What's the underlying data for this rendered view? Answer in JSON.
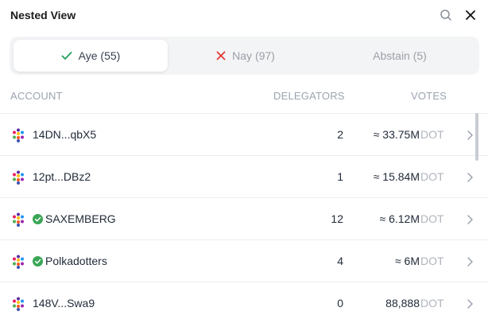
{
  "panel": {
    "title": "Nested View"
  },
  "tabs": [
    {
      "label": "Aye (55)",
      "icon": "check-icon",
      "color": "#22a05b",
      "active": true
    },
    {
      "label": "Nay (97)",
      "icon": "x-icon",
      "color": "#e53935",
      "active": false
    },
    {
      "label": "Abstain (5)",
      "icon": "",
      "active": false
    }
  ],
  "columns": {
    "account": "ACCOUNT",
    "delegators": "DELEGATORS",
    "votes": "VOTES"
  },
  "rows": [
    {
      "account": "14DN...qbX5",
      "verified": false,
      "delegators": "2",
      "votes": "≈ 33.75M",
      "unit": "DOT"
    },
    {
      "account": "12pt...DBz2",
      "verified": false,
      "delegators": "1",
      "votes": "≈ 15.84M",
      "unit": "DOT"
    },
    {
      "account": "SAXEMBERG",
      "verified": true,
      "delegators": "12",
      "votes": "≈ 6.12M",
      "unit": "DOT"
    },
    {
      "account": "Polkadotters",
      "verified": true,
      "delegators": "4",
      "votes": "≈ 6M",
      "unit": "DOT"
    },
    {
      "account": "148V...Swa9",
      "verified": false,
      "delegators": "0",
      "votes": "88,888",
      "unit": "DOT"
    }
  ],
  "colors": {
    "verified": "#3aa655",
    "accent_check": "#22a05b",
    "accent_x": "#e53935"
  }
}
